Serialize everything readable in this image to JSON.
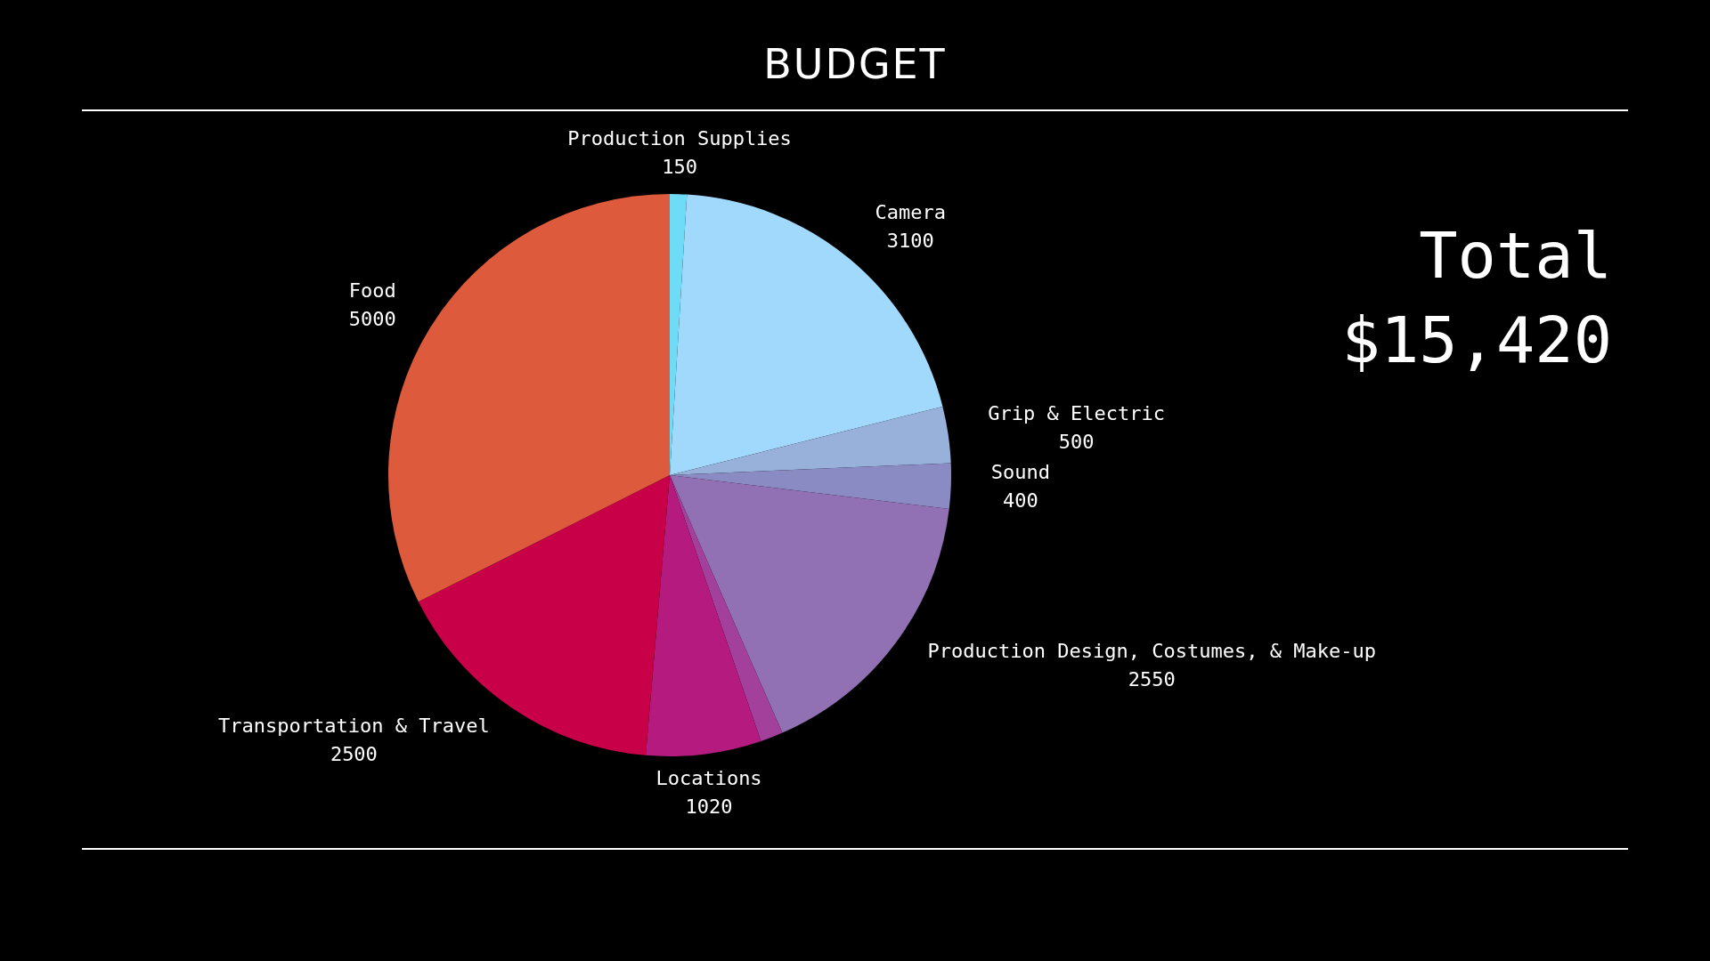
{
  "chart_data": {
    "type": "pie",
    "title": "BUDGET",
    "categories": [
      "Production Supplies",
      "Camera",
      "Grip & Electric",
      "Sound",
      "Production Design, Costumes, & Make-up",
      null,
      "Locations",
      "Transportation & Travel",
      "Food"
    ],
    "values": [
      150,
      3100,
      500,
      400,
      2550,
      200,
      1020,
      2500,
      5000
    ],
    "colors": [
      "#6fdcf7",
      "#a0d9fb",
      "#97b1da",
      "#8a8bc3",
      "#9171b4",
      "#a2409c",
      "#b51b7e",
      "#c70048",
      "#dd5a3c"
    ],
    "value_labels": [
      "150",
      "3100",
      "500",
      "400",
      "2550",
      null,
      "1020",
      "2500",
      "5000"
    ],
    "legend": false,
    "annotations": [
      "Total",
      "$15,420"
    ]
  }
}
